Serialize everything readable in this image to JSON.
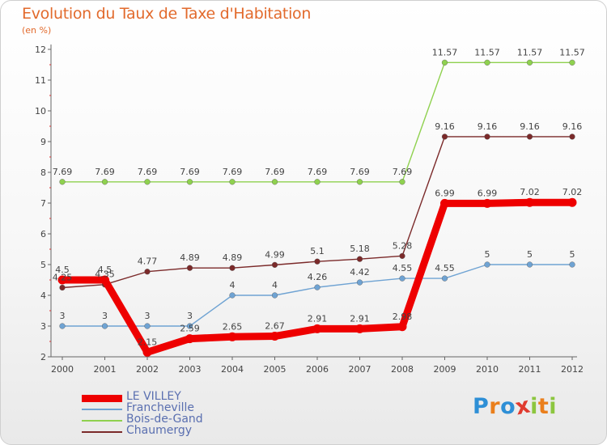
{
  "page": {
    "title": "Evolution du Taux de Taxe d'Habitation",
    "subtitle": "(en %)"
  },
  "brand": {
    "letters": [
      "P",
      "r",
      "o",
      "x",
      "i",
      "t",
      "i"
    ],
    "colors": [
      "#2e8fd6",
      "#ea7f1c",
      "#2e8fd6",
      "#e03b2f",
      "#8cc63f",
      "#ea7f1c",
      "#8cc63f"
    ]
  },
  "chart_data": {
    "type": "line",
    "title": "Evolution du Taux de Taxe d'Habitation",
    "ylabel": "(en %)",
    "xlabel": "",
    "x": [
      "2000",
      "2001",
      "2002",
      "2003",
      "2004",
      "2005",
      "2006",
      "2007",
      "2008",
      "2009",
      "2010",
      "2011",
      "2012"
    ],
    "ylim": [
      2,
      12
    ],
    "yticks": [
      2,
      3,
      4,
      5,
      6,
      7,
      8,
      9,
      10,
      11,
      12
    ],
    "grid": false,
    "legend_position": "bottom-left",
    "series": [
      {
        "name": "LE VILLEY",
        "color": "#ee0000",
        "values": [
          4.5,
          4.5,
          2.15,
          2.59,
          2.65,
          2.67,
          2.91,
          2.91,
          2.98,
          6.99,
          6.99,
          7.02,
          7.02
        ],
        "labels": [
          "4.5",
          "4.5",
          "2.15",
          "2.59",
          "2.65",
          "2.67",
          "2.91",
          "2.91",
          "2.98",
          "6.99",
          "6.99",
          "7.02",
          "7.02"
        ]
      },
      {
        "name": "Francheville",
        "color": "#6fa3d3",
        "values": [
          3,
          3,
          3,
          3,
          4,
          4,
          4.26,
          4.42,
          4.55,
          4.55,
          5,
          5,
          5
        ],
        "labels": [
          "3",
          "3",
          "3",
          "3",
          "4",
          "4",
          "4.26",
          "4.42",
          "4.55",
          "4.55",
          "5",
          "5",
          "5"
        ]
      },
      {
        "name": "Bois-de-Gand",
        "color": "#8fd14f",
        "values": [
          7.69,
          7.69,
          7.69,
          7.69,
          7.69,
          7.69,
          7.69,
          7.69,
          7.69,
          11.57,
          11.57,
          11.57,
          11.57
        ],
        "labels": [
          "7.69",
          "7.69",
          "7.69",
          "7.69",
          "7.69",
          "7.69",
          "7.69",
          "7.69",
          "7.69",
          "11.57",
          "11.57",
          "11.57",
          "11.57"
        ]
      },
      {
        "name": "Chaumergy",
        "color": "#7b2a2a",
        "values": [
          4.25,
          4.35,
          4.77,
          4.89,
          4.89,
          4.99,
          5.1,
          5.18,
          5.28,
          9.16,
          9.16,
          9.16,
          9.16
        ],
        "labels": [
          "4.25",
          "4.35",
          "4.77",
          "4.89",
          "4.89",
          "4.99",
          "5.1",
          "5.18",
          "5.28",
          "9.16",
          "9.16",
          "9.16",
          "9.16"
        ]
      }
    ]
  }
}
